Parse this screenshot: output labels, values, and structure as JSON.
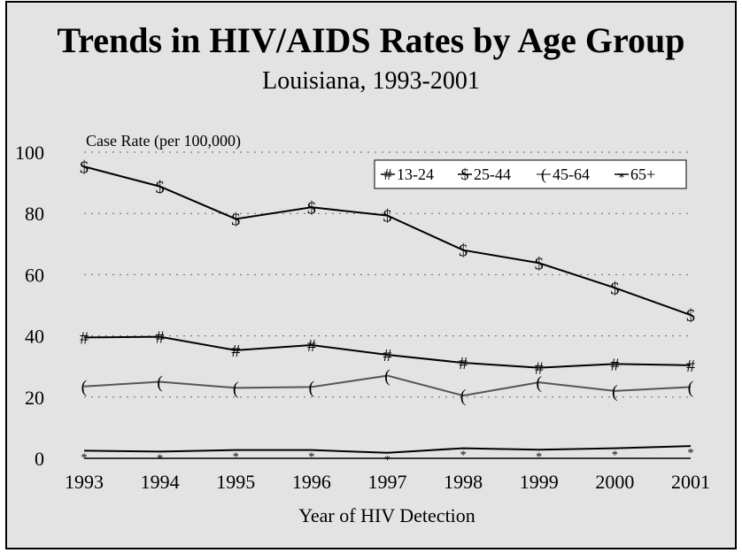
{
  "chart_data": {
    "type": "line",
    "title": "Trends in HIV/AIDS Rates by Age Group",
    "subtitle": "Louisiana, 1993-2001",
    "xlabel": "Year of HIV Detection",
    "ylabel": "Case Rate (per 100,000)",
    "x": [
      "1993",
      "1994",
      "1995",
      "1996",
      "1997",
      "1998",
      "1999",
      "2000",
      "2001"
    ],
    "ylim": [
      0,
      100
    ],
    "yticks": [
      "0",
      "20",
      "40",
      "60",
      "80",
      "100"
    ],
    "grid": true,
    "legend_position": "top-right",
    "series": [
      {
        "name": "13-24",
        "marker": "#",
        "values": [
          39.5,
          39.7,
          35.3,
          37.0,
          33.8,
          31.2,
          29.6,
          30.8,
          30.4
        ]
      },
      {
        "name": "25-44",
        "marker": "$",
        "values": [
          95.3,
          88.8,
          78.2,
          82.0,
          79.3,
          68.0,
          63.8,
          55.7,
          46.8
        ]
      },
      {
        "name": "45-64",
        "marker": "(",
        "values": [
          23.5,
          25.0,
          23.0,
          23.3,
          27.0,
          20.5,
          24.8,
          22.0,
          23.3
        ]
      },
      {
        "name": "65+",
        "marker": "*",
        "values": [
          2.5,
          2.2,
          2.7,
          2.7,
          1.8,
          3.3,
          2.8,
          3.3,
          4.0
        ]
      }
    ]
  }
}
